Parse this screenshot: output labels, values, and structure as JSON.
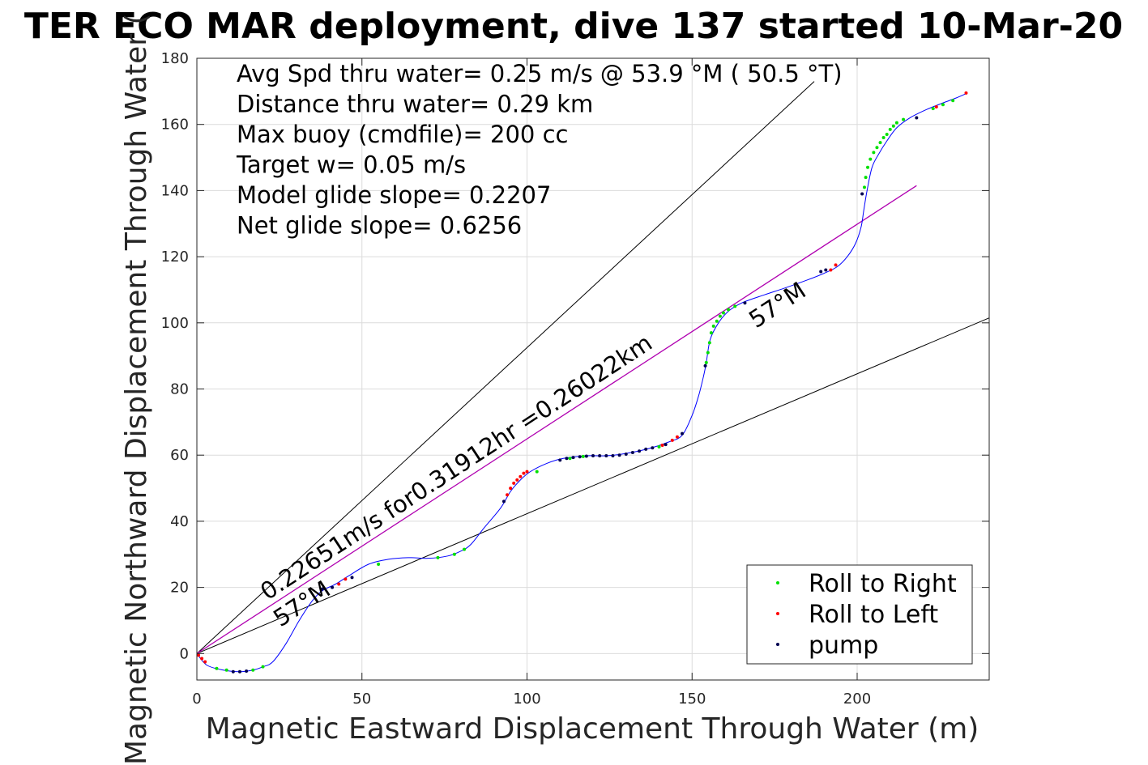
{
  "chart_data": {
    "type": "line",
    "title": "TER ECO MAR deployment, dive 137 started 10-Mar-20",
    "xlabel": "Magnetic Eastward Displacement Through Water (m)",
    "ylabel": "Magnetic Northward Displacement Through Water (",
    "xlim": [
      0,
      240
    ],
    "ylim": [
      -8,
      180
    ],
    "xticks": [
      0,
      50,
      100,
      150,
      200
    ],
    "yticks": [
      0,
      20,
      40,
      60,
      80,
      100,
      120,
      140,
      160,
      180
    ],
    "grid": true,
    "legend_position": "bottom-right",
    "annotations": {
      "info_lines": [
        "Avg Spd thru water=  0.25 m/s @  53.9 °M ( 50.5 °T)",
        "Distance thru water=  0.29 km",
        "Max buoy (cmdfile)= 200 cc",
        "Target w= 0.05 m/s",
        "Model glide slope= 0.2207",
        "Net glide slope= 0.6256"
      ],
      "slope_label": "0.22651m/s for0.31912hr =0.26022km",
      "heading_upper": "57°M",
      "heading_lower": "57°M"
    },
    "reference_lines": [
      {
        "x": [
          0,
          187
        ],
        "y": [
          0,
          173
        ]
      },
      {
        "x": [
          0,
          240
        ],
        "y": [
          0,
          101.5
        ]
      },
      {
        "x": [
          0,
          218
        ],
        "y": [
          0,
          141.5
        ]
      }
    ],
    "track": {
      "x": [
        0,
        3,
        8,
        13,
        17,
        20,
        23,
        27,
        31,
        35,
        38,
        42,
        46,
        52,
        58,
        64,
        70,
        76,
        80,
        83,
        87,
        92,
        95,
        98,
        101,
        106,
        111,
        118,
        124,
        130,
        137,
        143,
        147,
        150,
        152,
        153.5,
        154.3,
        155.5,
        158,
        161,
        165,
        172,
        178,
        185,
        190,
        194,
        197,
        199.5,
        201.2,
        202,
        203,
        204.5,
        206.5,
        209,
        212,
        216,
        221,
        226,
        230,
        233
      ],
      "y": [
        0,
        -3.5,
        -5,
        -5.5,
        -5,
        -4,
        -2.5,
        3,
        10,
        16,
        19,
        21,
        23.5,
        27,
        28.5,
        29,
        28.8,
        29.5,
        31,
        33,
        38,
        44,
        49,
        52.5,
        55,
        57.5,
        59,
        59.8,
        59.8,
        60.5,
        62,
        64,
        66,
        72,
        78,
        84,
        88,
        95,
        100,
        103.5,
        106,
        108.5,
        110.5,
        113,
        115,
        117,
        120,
        124,
        129,
        134,
        140,
        147,
        151,
        155,
        159,
        162,
        164.5,
        166.5,
        168,
        169.3
      ]
    },
    "series": [
      {
        "name": "Roll to Right",
        "color": "#00e000",
        "points": [
          [
            6,
            -4.5
          ],
          [
            9,
            -5
          ],
          [
            17,
            -5
          ],
          [
            20,
            -4
          ],
          [
            55,
            27
          ],
          [
            73,
            29
          ],
          [
            78,
            30
          ],
          [
            81,
            31.5
          ],
          [
            103,
            55
          ],
          [
            113,
            59
          ],
          [
            117,
            59.6
          ],
          [
            140,
            62.5
          ],
          [
            154.3,
            88
          ],
          [
            154.8,
            91
          ],
          [
            155.3,
            94
          ],
          [
            155.8,
            97
          ],
          [
            156.5,
            99
          ],
          [
            157.5,
            100.5
          ],
          [
            158.5,
            102
          ],
          [
            159.5,
            103
          ],
          [
            161,
            104
          ],
          [
            163,
            105
          ],
          [
            202.2,
            141
          ],
          [
            202.6,
            144
          ],
          [
            203.2,
            147
          ],
          [
            204,
            149.5
          ],
          [
            205,
            151.5
          ],
          [
            206,
            153
          ],
          [
            207,
            154.5
          ],
          [
            208,
            156
          ],
          [
            209,
            157
          ],
          [
            210,
            158.5
          ],
          [
            211,
            159.5
          ],
          [
            212,
            160.5
          ],
          [
            214,
            161.5
          ],
          [
            223,
            164.8
          ],
          [
            226,
            166
          ],
          [
            229,
            167.2
          ]
        ]
      },
      {
        "name": "Roll to Left",
        "color": "#ff0000",
        "points": [
          [
            0.5,
            -0.5
          ],
          [
            1.5,
            -1.5
          ],
          [
            2.5,
            -2.5
          ],
          [
            43,
            21
          ],
          [
            45,
            22.5
          ],
          [
            94,
            48
          ],
          [
            95,
            50
          ],
          [
            96,
            51.5
          ],
          [
            97,
            52.5
          ],
          [
            98,
            53.5
          ],
          [
            99,
            54.5
          ],
          [
            100,
            55
          ],
          [
            141,
            63
          ],
          [
            144,
            64.5
          ],
          [
            145.5,
            65.5
          ],
          [
            192,
            116
          ],
          [
            193.5,
            117.5
          ],
          [
            224,
            165.3
          ],
          [
            233,
            169.5
          ]
        ]
      },
      {
        "name": "pump",
        "color": "#000050",
        "points": [
          [
            11,
            -5.5
          ],
          [
            13,
            -5.5
          ],
          [
            15,
            -5.3
          ],
          [
            38,
            19.5
          ],
          [
            41,
            20
          ],
          [
            47,
            23
          ],
          [
            93,
            46
          ],
          [
            110,
            58.5
          ],
          [
            112,
            59
          ],
          [
            114,
            59.3
          ],
          [
            116,
            59.5
          ],
          [
            118,
            59.7
          ],
          [
            120,
            59.8
          ],
          [
            122,
            59.8
          ],
          [
            124,
            59.8
          ],
          [
            126,
            59.8
          ],
          [
            128,
            60
          ],
          [
            130,
            60.3
          ],
          [
            132,
            60.8
          ],
          [
            134,
            61.2
          ],
          [
            136,
            61.8
          ],
          [
            138,
            62.2
          ],
          [
            142,
            63.2
          ],
          [
            147,
            66.5
          ],
          [
            154,
            87
          ],
          [
            166,
            106
          ],
          [
            189,
            115.5
          ],
          [
            190.5,
            116
          ],
          [
            201.5,
            139
          ],
          [
            218,
            162
          ]
        ]
      }
    ]
  }
}
